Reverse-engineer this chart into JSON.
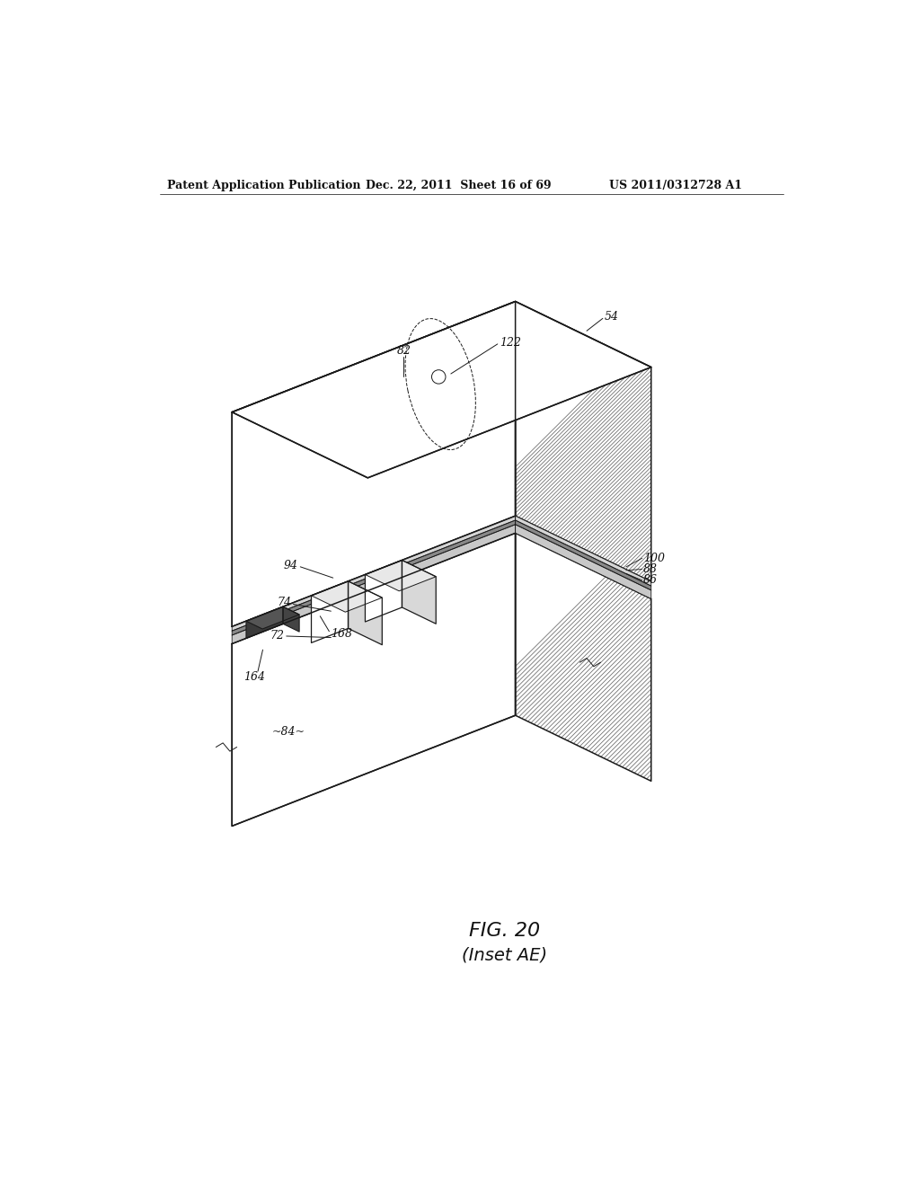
{
  "background_color": "#ffffff",
  "header_left": "Patent Application Publication",
  "header_center": "Dec. 22, 2011  Sheet 16 of 69",
  "header_right": "US 2011/0312728 A1",
  "fig_label": "FIG. 20",
  "fig_sublabel": "(Inset AE)",
  "lw_main": 1.1,
  "lw_thin": 0.7,
  "lw_hatch": 0.55,
  "hatch_color": "#555555",
  "line_color": "#1a1a1a"
}
